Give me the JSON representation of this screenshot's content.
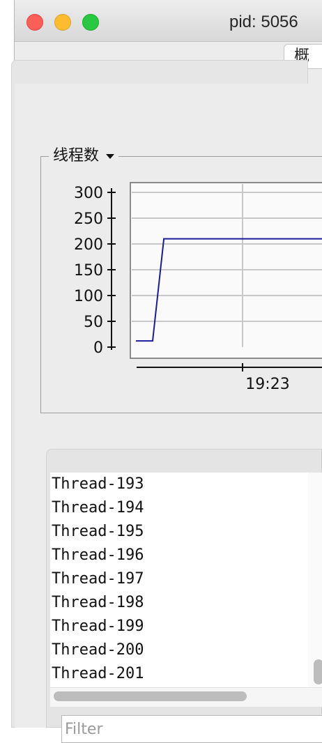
{
  "window": {
    "title": "pid: 5056",
    "top_button_label": "概"
  },
  "threads_panel": {
    "group_title": "线程数"
  },
  "chart_data": {
    "type": "line",
    "title": "",
    "xlabel": "",
    "ylabel": "",
    "ylim": [
      0,
      300
    ],
    "y_ticks": [
      "300",
      "250",
      "200",
      "150",
      "100",
      "50",
      "0"
    ],
    "x_tick_labels": [
      "19:23"
    ],
    "grid": true,
    "series": [
      {
        "color": "#1a1a9c",
        "points": [
          {
            "t": 0,
            "y": 12
          },
          {
            "t": 0.09,
            "y": 12
          },
          {
            "t": 0.15,
            "y": 210
          },
          {
            "t": 1.0,
            "y": 210
          }
        ]
      }
    ]
  },
  "thread_list": {
    "items": [
      "Thread-193",
      "Thread-194",
      "Thread-195",
      "Thread-196",
      "Thread-197",
      "Thread-198",
      "Thread-199",
      "Thread-200",
      "Thread-201"
    ]
  },
  "filter": {
    "placeholder": "Filter"
  }
}
